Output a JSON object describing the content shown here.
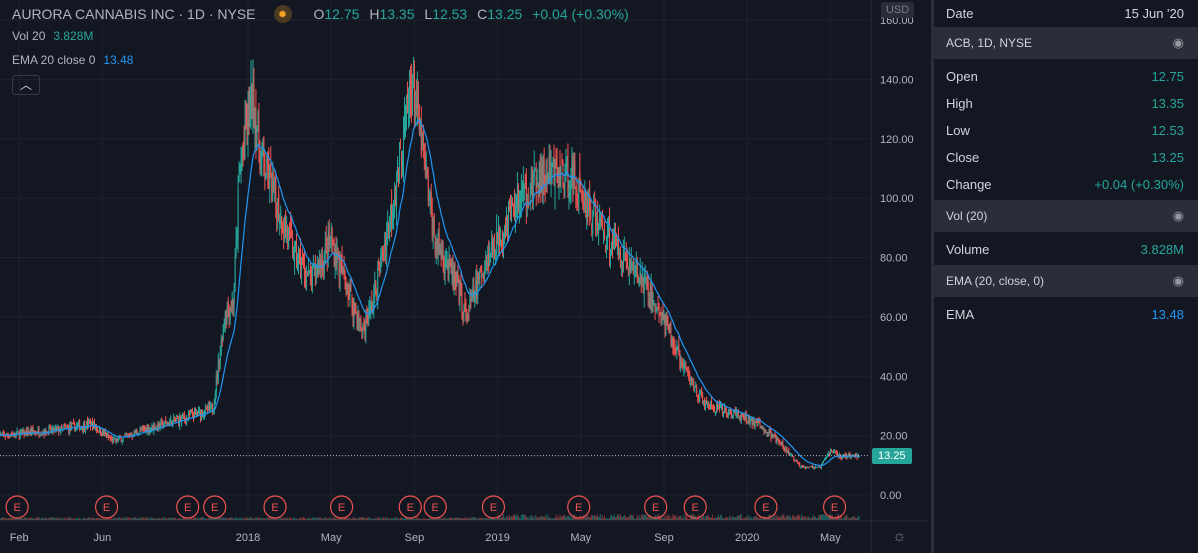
{
  "header": {
    "title": "AURORA CANNABIS INC · 1D · NYSE",
    "o_label": "O",
    "o": "12.75",
    "h_label": "H",
    "h": "13.35",
    "l_label": "L",
    "l": "12.53",
    "c_label": "C",
    "c": "13.25",
    "change": "+0.04 (+0.30%)"
  },
  "indicators": {
    "vol_label": "Vol 20",
    "vol_value": "3.828M",
    "ema_label": "EMA 20 close 0",
    "ema_value": "13.48"
  },
  "axis": {
    "currency": "USD",
    "last_price": "13.25"
  },
  "panel": {
    "date_label": "Date",
    "date": "15 Jun '20",
    "sections": [
      {
        "title": "ACB, 1D, NYSE"
      },
      {
        "title": "Vol (20)"
      },
      {
        "title": "EMA (20, close, 0)"
      }
    ],
    "ohlc": [
      {
        "label": "Open",
        "value": "12.75"
      },
      {
        "label": "High",
        "value": "13.35"
      },
      {
        "label": "Low",
        "value": "12.53"
      },
      {
        "label": "Close",
        "value": "13.25"
      },
      {
        "label": "Change",
        "value": "+0.04 (+0.30%)"
      }
    ],
    "volume": {
      "label": "Volume",
      "value": "3.828M"
    },
    "ema": {
      "label": "EMA",
      "value": "13.48"
    }
  },
  "colors": {
    "up": "#26a69a",
    "down": "#ef5350",
    "ema": "#2196f3",
    "bg": "#131722"
  },
  "chart_data": {
    "type": "candlestick",
    "ylim": [
      0,
      160
    ],
    "yticks": [
      "0.00",
      "20.00",
      "40.00",
      "60.00",
      "80.00",
      "100.00",
      "120.00",
      "140.00",
      "160.00"
    ],
    "xticks": [
      {
        "label": "Feb",
        "month": 1
      },
      {
        "label": "Jun",
        "month": 5
      },
      {
        "label": "2018",
        "month": 12
      },
      {
        "label": "May",
        "month": 16
      },
      {
        "label": "Sep",
        "month": 20
      },
      {
        "label": "2019",
        "month": 24
      },
      {
        "label": "May",
        "month": 28
      },
      {
        "label": "Sep",
        "month": 32
      },
      {
        "label": "2020",
        "month": 36
      },
      {
        "label": "May",
        "month": 40
      }
    ],
    "close_keypoints": [
      [
        0,
        20
      ],
      [
        3,
        22
      ],
      [
        4.5,
        24
      ],
      [
        5.5,
        18
      ],
      [
        7,
        22
      ],
      [
        9,
        26
      ],
      [
        10.3,
        29
      ],
      [
        10.6,
        45
      ],
      [
        10.9,
        62
      ],
      [
        11.3,
        65
      ],
      [
        11.6,
        110
      ],
      [
        12.2,
        135
      ],
      [
        12.6,
        115
      ],
      [
        13.3,
        100
      ],
      [
        14.3,
        80
      ],
      [
        15,
        72
      ],
      [
        16,
        85
      ],
      [
        16.5,
        75
      ],
      [
        17.5,
        55
      ],
      [
        18,
        65
      ],
      [
        19,
        100
      ],
      [
        19.9,
        140
      ],
      [
        20.3,
        120
      ],
      [
        21,
        85
      ],
      [
        21.5,
        80
      ],
      [
        22.5,
        60
      ],
      [
        23.5,
        80
      ],
      [
        25,
        100
      ],
      [
        26.5,
        108
      ],
      [
        27.5,
        108
      ],
      [
        28.5,
        95
      ],
      [
        29.5,
        85
      ],
      [
        31,
        72
      ],
      [
        32,
        58
      ],
      [
        33,
        42
      ],
      [
        34,
        30
      ],
      [
        35.5,
        27
      ],
      [
        36.5,
        24
      ],
      [
        37.5,
        18
      ],
      [
        38.5,
        10
      ],
      [
        39.5,
        9
      ],
      [
        40,
        15
      ],
      [
        40.5,
        13
      ],
      [
        41.4,
        13.25
      ]
    ],
    "earnings_months": [
      0.9,
      5.2,
      9.1,
      10.4,
      13.3,
      16.5,
      19.8,
      21.0,
      23.8,
      27.9,
      31.6,
      33.5,
      36.9,
      40.2
    ],
    "earnings_label": "E"
  }
}
